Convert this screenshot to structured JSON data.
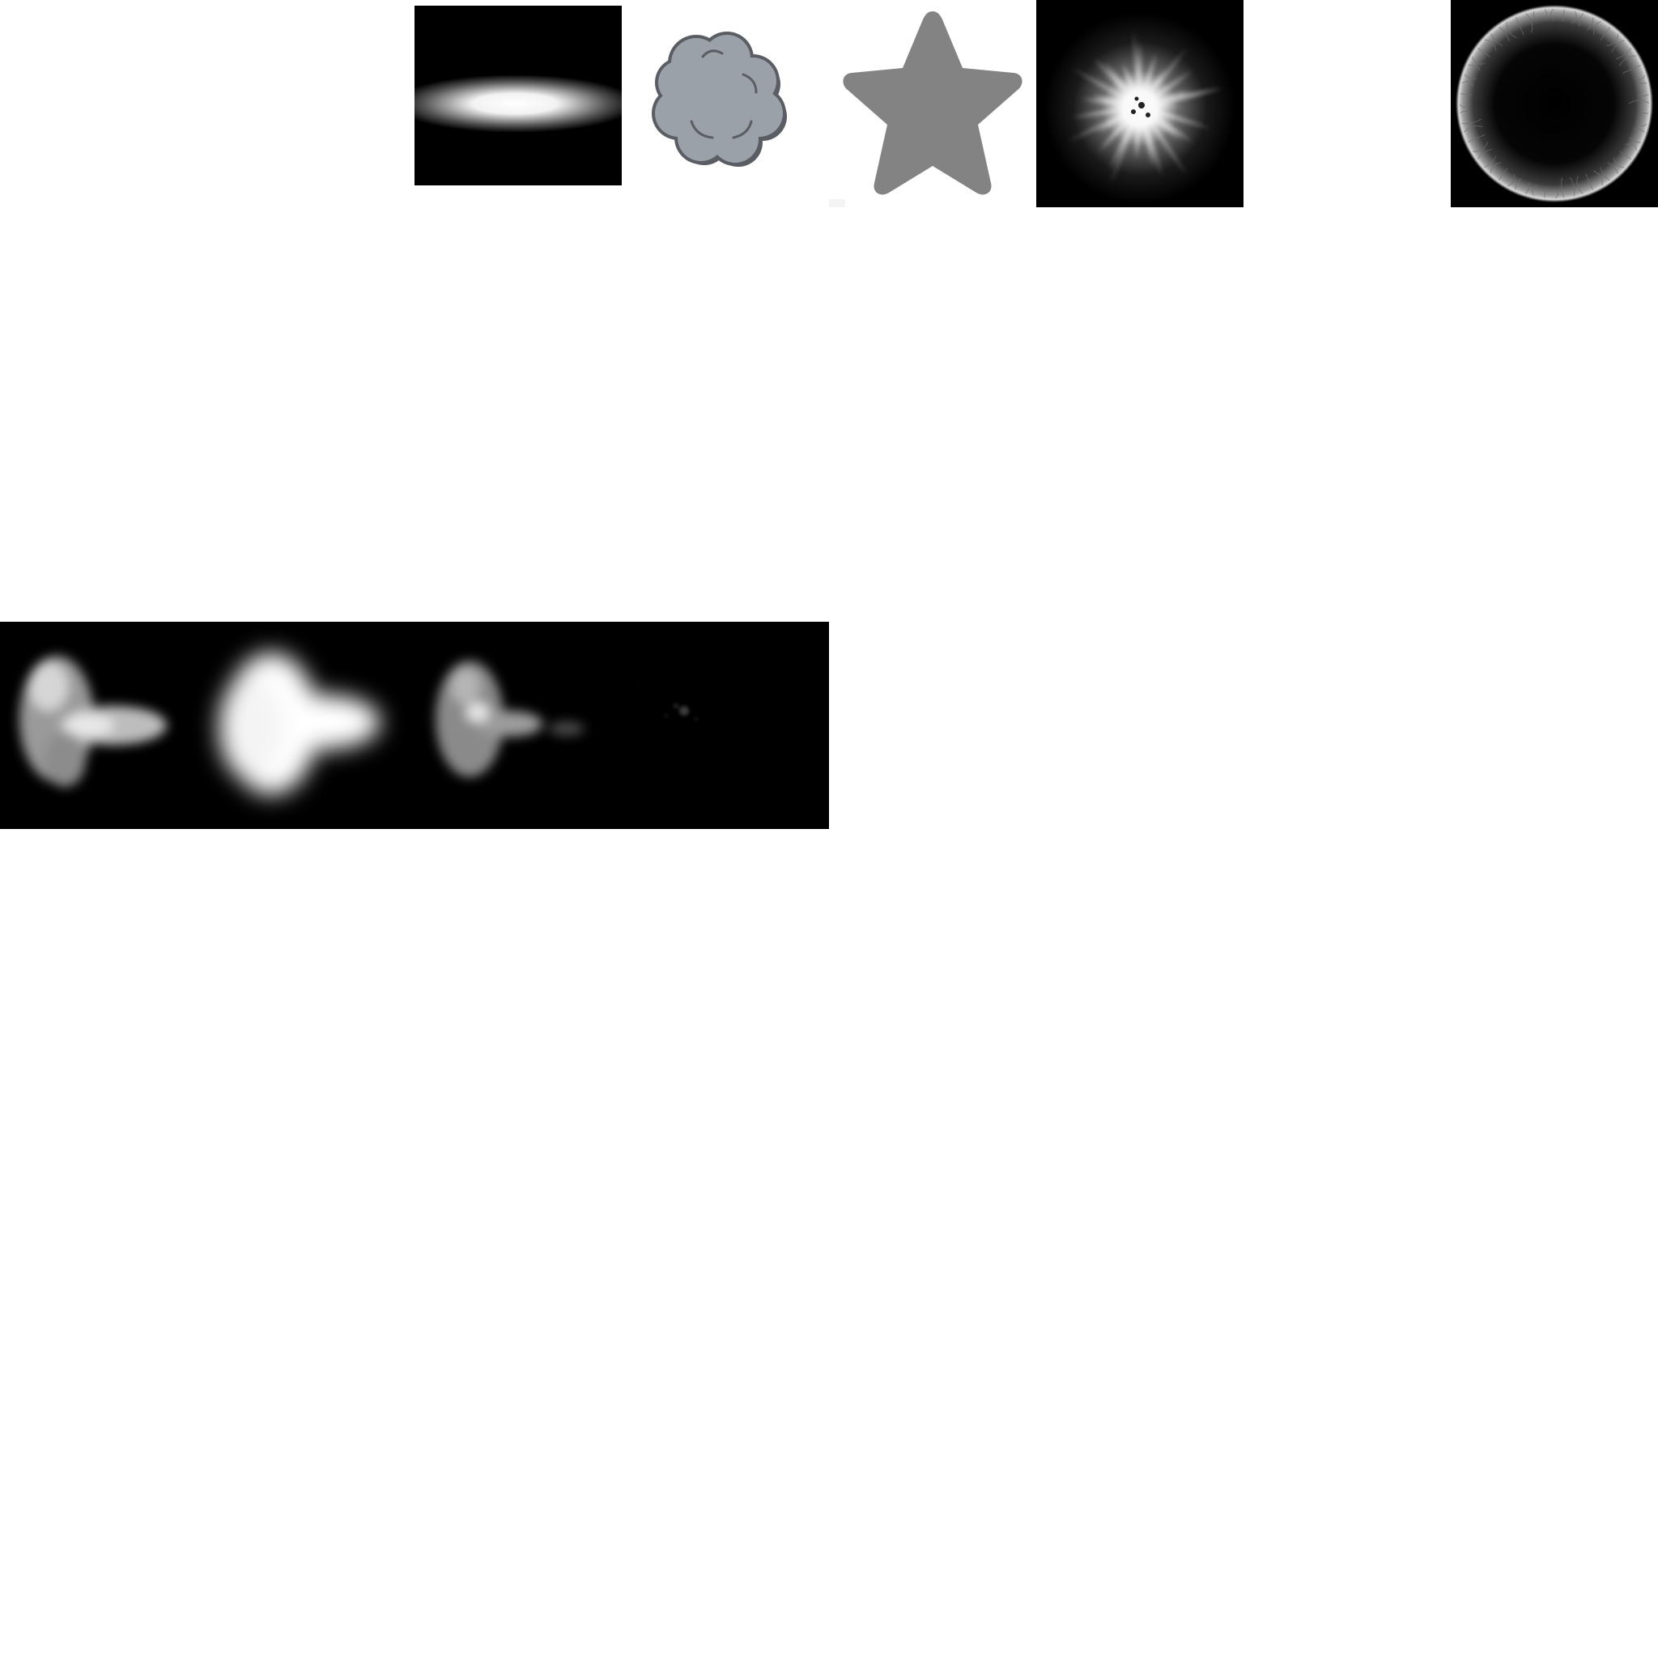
{
  "sheet": {
    "background": "#ffffff",
    "tiles": [
      {
        "name": "horizontal-glow-bar-sprite",
        "background": "#000000"
      },
      {
        "name": "smoke-puff-cloud-sprite",
        "fill": "#9ba1a9",
        "outline": "#5a5d63"
      },
      {
        "name": "star-sprite",
        "fill": "#838383"
      },
      {
        "name": "radial-light-burst-sprite",
        "background": "#000000"
      },
      {
        "name": "fractal-ring-sprite",
        "background": "#000000"
      }
    ],
    "flipbook": {
      "name": "smoke-flipbook-strip",
      "frames": 4,
      "background": "#000000"
    }
  }
}
